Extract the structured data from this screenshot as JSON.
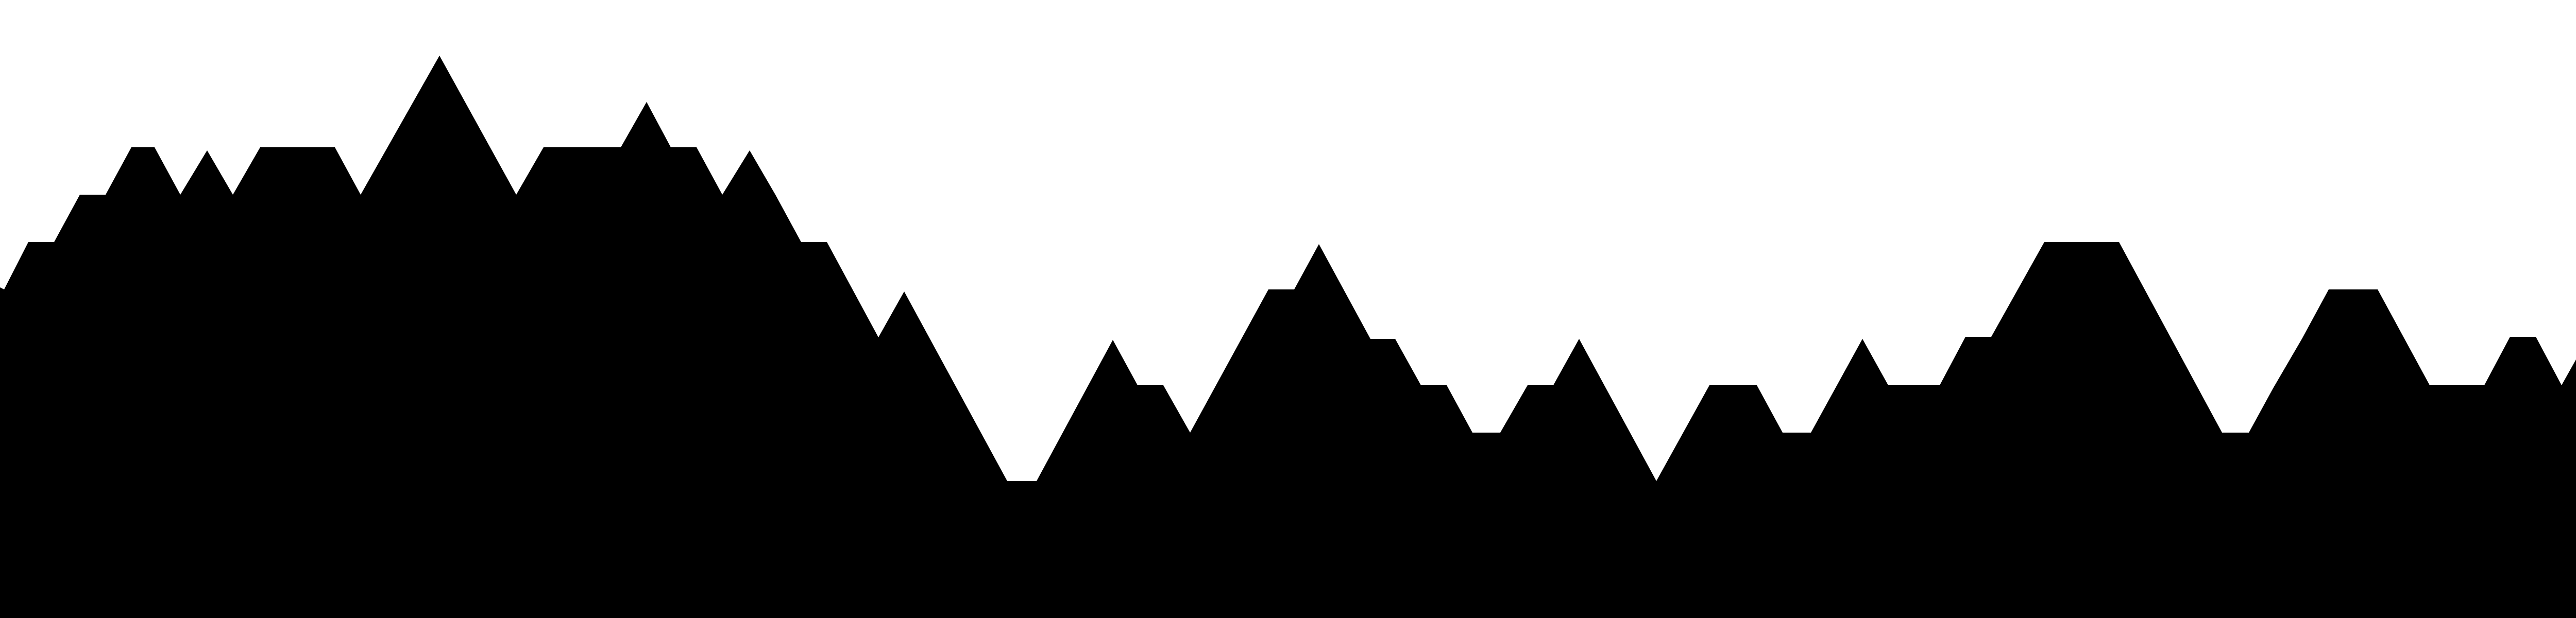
{
  "scene": {
    "description_visible_text": "",
    "colors": {
      "background": "#ffffff",
      "silhouette": "#000000"
    }
  }
}
